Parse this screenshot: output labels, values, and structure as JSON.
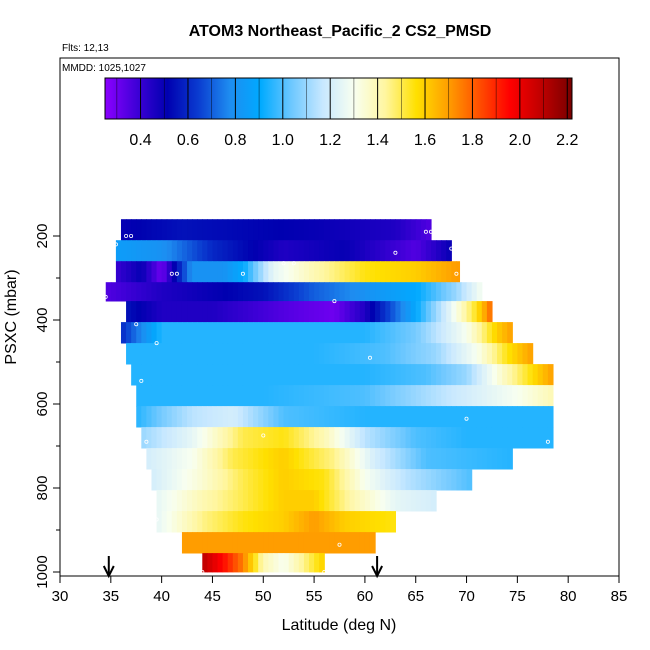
{
  "chart_data": {
    "type": "heatmap",
    "title": "ATOM3 Northeast_Pacific_2 CS2_PMSD",
    "annotations": [
      "Flts: 12,13",
      "MMDD: 1025,1027"
    ],
    "xlabel": "Latitude (deg N)",
    "ylabel": "PSXC (mbar)",
    "xlim": [
      30,
      85
    ],
    "ylim": [
      1000,
      0
    ],
    "x_ticks": [
      30,
      35,
      40,
      45,
      50,
      55,
      60,
      65,
      70,
      75,
      80,
      85
    ],
    "y_ticks": [
      200,
      400,
      600,
      800,
      1000
    ],
    "colorbar": {
      "range": [
        0.25,
        2.22
      ],
      "ticks": [
        0.4,
        0.6,
        0.8,
        1.0,
        1.2,
        1.4,
        1.6,
        1.8,
        2.0,
        2.2
      ],
      "tick_labels": [
        "0.4",
        "0.6",
        "0.8",
        "1.0",
        "1.2",
        "1.4",
        "1.6",
        "1.8",
        "2.0",
        "2.2"
      ],
      "colors": [
        "#8b00ff",
        "#4000d8",
        "#0000b0",
        "#0a3cd0",
        "#1e8cf0",
        "#00aaff",
        "#6ec8ff",
        "#c8e8ff",
        "#f8fff0",
        "#fff6a0",
        "#ffe000",
        "#ffa000",
        "#ff5000",
        "#ff0000",
        "#c00000",
        "#780000"
      ]
    },
    "bands": [
      {
        "p_top": 160,
        "p_bot": 210,
        "xmin": 36,
        "xmax": 66.5,
        "points": [
          [
            36,
            0.5
          ],
          [
            42,
            0.55
          ],
          [
            55,
            0.5
          ],
          [
            63,
            0.45
          ],
          [
            66.5,
            0.35
          ]
        ]
      },
      {
        "p_top": 210,
        "p_bot": 260,
        "xmin": 35.5,
        "xmax": 68.5,
        "points": [
          [
            35.5,
            0.85
          ],
          [
            40,
            0.8
          ],
          [
            45,
            0.6
          ],
          [
            52,
            0.45
          ],
          [
            58,
            0.5
          ],
          [
            65,
            0.35
          ],
          [
            68.5,
            0.5
          ]
        ]
      },
      {
        "p_top": 260,
        "p_bot": 310,
        "xmin": 35.5,
        "xmax": 69.3,
        "points": [
          [
            35.5,
            0.4
          ],
          [
            38,
            0.5
          ],
          [
            40,
            0.3
          ],
          [
            43,
            0.8
          ],
          [
            46,
            0.8
          ],
          [
            48,
            0.9
          ],
          [
            51,
            1.25
          ],
          [
            55,
            1.4
          ],
          [
            60,
            1.55
          ],
          [
            65,
            1.6
          ],
          [
            69,
            1.7
          ]
        ]
      },
      {
        "p_top": 310,
        "p_bot": 355,
        "xmin": 34.5,
        "xmax": 71.5,
        "points": [
          [
            34.5,
            0.35
          ],
          [
            40,
            0.45
          ],
          [
            45,
            0.5
          ],
          [
            50,
            0.55
          ],
          [
            55,
            0.7
          ],
          [
            60,
            0.8
          ],
          [
            65,
            0.9
          ],
          [
            69,
            1.1
          ],
          [
            71.5,
            1.3
          ]
        ]
      },
      {
        "p_top": 355,
        "p_bot": 405,
        "xmin": 36.5,
        "xmax": 72.5,
        "points": [
          [
            36.5,
            0.55
          ],
          [
            40,
            0.45
          ],
          [
            45,
            0.45
          ],
          [
            52,
            0.35
          ],
          [
            57,
            0.3
          ],
          [
            60,
            0.45
          ],
          [
            64,
            0.8
          ],
          [
            68,
            1.2
          ],
          [
            71,
            1.55
          ],
          [
            72.5,
            1.8
          ]
        ]
      },
      {
        "p_top": 405,
        "p_bot": 455,
        "xmin": 36,
        "xmax": 74.5,
        "points": [
          [
            36,
            0.6
          ],
          [
            40,
            0.95
          ],
          [
            50,
            0.95
          ],
          [
            60,
            0.95
          ],
          [
            65,
            1.05
          ],
          [
            70,
            1.3
          ],
          [
            73,
            1.6
          ],
          [
            74.5,
            1.7
          ]
        ]
      },
      {
        "p_top": 455,
        "p_bot": 505,
        "xmin": 36.5,
        "xmax": 76.5,
        "points": [
          [
            36.5,
            0.95
          ],
          [
            45,
            0.95
          ],
          [
            55,
            0.95
          ],
          [
            62,
            1.0
          ],
          [
            67,
            1.1
          ],
          [
            71,
            1.3
          ],
          [
            74,
            1.55
          ],
          [
            76.5,
            1.7
          ]
        ]
      },
      {
        "p_top": 505,
        "p_bot": 555,
        "xmin": 37,
        "xmax": 78.5,
        "points": [
          [
            37,
            0.95
          ],
          [
            50,
            0.95
          ],
          [
            60,
            0.95
          ],
          [
            66,
            1.0
          ],
          [
            70,
            1.1
          ],
          [
            74,
            1.4
          ],
          [
            78.5,
            1.7
          ]
        ]
      },
      {
        "p_top": 555,
        "p_bot": 605,
        "xmin": 37.5,
        "xmax": 78.5,
        "points": [
          [
            37.5,
            0.95
          ],
          [
            50,
            0.95
          ],
          [
            60,
            1.0
          ],
          [
            65,
            1.1
          ],
          [
            70,
            1.2
          ],
          [
            75,
            1.3
          ],
          [
            78.5,
            1.4
          ]
        ]
      },
      {
        "p_top": 605,
        "p_bot": 655,
        "xmin": 37.5,
        "xmax": 78.5,
        "points": [
          [
            37.5,
            0.95
          ],
          [
            40,
            1.05
          ],
          [
            43,
            1.15
          ],
          [
            47,
            1.2
          ],
          [
            52,
            1.0
          ],
          [
            60,
            0.95
          ],
          [
            70,
            0.95
          ],
          [
            78.5,
            0.95
          ]
        ]
      },
      {
        "p_top": 655,
        "p_bot": 705,
        "xmin": 38,
        "xmax": 78.5,
        "points": [
          [
            38,
            1.1
          ],
          [
            43,
            1.25
          ],
          [
            48,
            1.5
          ],
          [
            52,
            1.55
          ],
          [
            56,
            1.4
          ],
          [
            60,
            1.15
          ],
          [
            65,
            1.0
          ],
          [
            70,
            0.95
          ],
          [
            78.5,
            0.95
          ]
        ]
      },
      {
        "p_top": 705,
        "p_bot": 755,
        "xmin": 38.5,
        "xmax": 74.5,
        "points": [
          [
            38.5,
            1.2
          ],
          [
            43,
            1.3
          ],
          [
            47,
            1.5
          ],
          [
            52,
            1.6
          ],
          [
            57,
            1.45
          ],
          [
            61,
            1.2
          ],
          [
            66,
            1.0
          ],
          [
            74.5,
            0.95
          ]
        ]
      },
      {
        "p_top": 755,
        "p_bot": 805,
        "xmin": 39,
        "xmax": 70.5,
        "points": [
          [
            39,
            1.2
          ],
          [
            44,
            1.35
          ],
          [
            48,
            1.5
          ],
          [
            52,
            1.6
          ],
          [
            56,
            1.55
          ],
          [
            60,
            1.3
          ],
          [
            64,
            1.15
          ],
          [
            70.5,
            1.0
          ]
        ]
      },
      {
        "p_top": 805,
        "p_bot": 855,
        "xmin": 39.5,
        "xmax": 67,
        "points": [
          [
            39.5,
            1.25
          ],
          [
            44,
            1.4
          ],
          [
            48,
            1.5
          ],
          [
            52,
            1.6
          ],
          [
            55,
            1.6
          ],
          [
            59,
            1.4
          ],
          [
            63,
            1.25
          ],
          [
            67,
            1.2
          ]
        ]
      },
      {
        "p_top": 855,
        "p_bot": 905,
        "xmin": 39.5,
        "xmax": 63,
        "points": [
          [
            39.5,
            1.25
          ],
          [
            44,
            1.45
          ],
          [
            48,
            1.55
          ],
          [
            52,
            1.6
          ],
          [
            55,
            1.7
          ],
          [
            58,
            1.6
          ],
          [
            63,
            1.55
          ]
        ]
      },
      {
        "p_top": 905,
        "p_bot": 955,
        "xmin": 42,
        "xmax": 61,
        "points": [
          [
            42,
            1.7
          ],
          [
            50,
            1.7
          ],
          [
            55,
            1.7
          ],
          [
            61,
            1.7
          ]
        ]
      },
      {
        "p_top": 955,
        "p_bot": 1000,
        "xmin": 44,
        "xmax": 56,
        "points": [
          [
            44,
            2.1
          ],
          [
            46,
            1.95
          ],
          [
            48,
            1.75
          ],
          [
            50,
            1.4
          ],
          [
            52,
            1.3
          ],
          [
            54,
            1.45
          ],
          [
            56,
            1.6
          ]
        ]
      }
    ],
    "flight_points": [
      [
        66,
        190
      ],
      [
        66.5,
        190
      ],
      [
        36.5,
        200
      ],
      [
        37,
        200
      ],
      [
        35.5,
        220
      ],
      [
        68.5,
        230
      ],
      [
        63,
        240
      ],
      [
        52,
        265
      ],
      [
        53,
        265
      ],
      [
        41,
        290
      ],
      [
        41.5,
        290
      ],
      [
        48,
        290
      ],
      [
        69,
        290
      ],
      [
        34.5,
        345
      ],
      [
        72.5,
        350
      ],
      [
        57,
        355
      ],
      [
        37.5,
        410
      ],
      [
        39.5,
        455
      ],
      [
        60.5,
        490
      ],
      [
        38,
        545
      ],
      [
        70,
        635
      ],
      [
        38.5,
        690
      ],
      [
        78,
        690
      ],
      [
        50,
        675
      ],
      [
        39.5,
        875
      ],
      [
        57.5,
        935
      ],
      [
        44,
        1000
      ],
      [
        56,
        1000
      ]
    ],
    "arrows_x": [
      34.8,
      61.2
    ]
  }
}
